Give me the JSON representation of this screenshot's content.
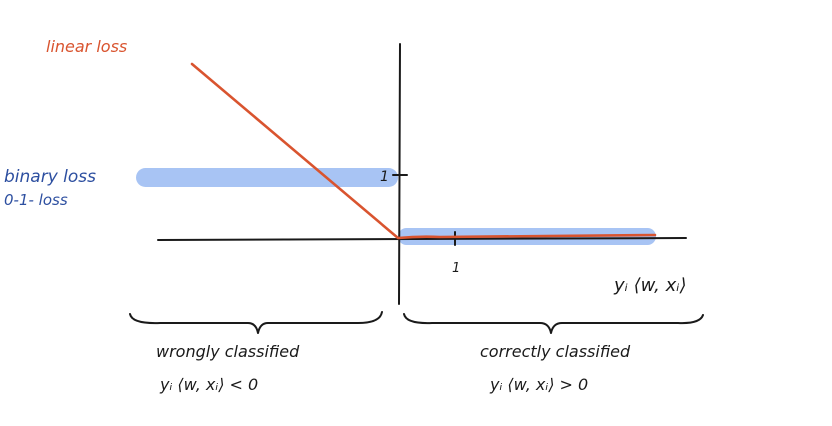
{
  "labels": {
    "linear_loss": "linear loss",
    "binary_loss_line1": "binary loss",
    "binary_loss_line2": "0-1- loss",
    "tick_y": "1",
    "tick_x": "1",
    "x_axis": "yᵢ ⟨w, xᵢ⟩",
    "wrong_title": "wrongly classified",
    "wrong_expr": "yᵢ ⟨w, xᵢ⟩ < 0",
    "correct_title": "correctly classified",
    "correct_expr": "yᵢ ⟨w, xᵢ⟩ > 0"
  },
  "colors": {
    "linear_loss": "#d9542f",
    "binary_loss_band": "#a8c4f4",
    "binary_loss_text": "#2d4fa0",
    "ink": "#1a1a1a"
  }
}
